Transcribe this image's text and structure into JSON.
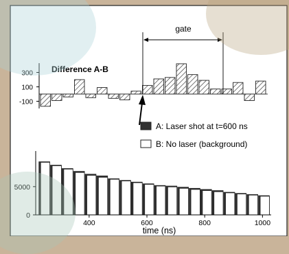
{
  "chart_data": [
    {
      "type": "bar",
      "title": "Difference A-B",
      "y_ticks": [
        "300",
        "100",
        "-100"
      ],
      "ylim": [
        -220,
        440
      ],
      "values": [
        -170,
        -90,
        -40,
        200,
        -50,
        90,
        -60,
        -80,
        40,
        120,
        210,
        230,
        420,
        270,
        190,
        70,
        70,
        160,
        -90,
        180
      ],
      "bar_style": "hatched",
      "annotation": {
        "label": "gate"
      }
    },
    {
      "type": "bar",
      "xlabel": "time (ns)",
      "x_ticks": [
        "400",
        "600",
        "800",
        "1000"
      ],
      "x_tick_values": [
        400,
        600,
        800,
        1000
      ],
      "y_ticks": [
        "5000",
        "0"
      ],
      "y_tick_values": [
        5000,
        0
      ],
      "xlim": [
        215,
        1030
      ],
      "ylim": [
        0,
        11300
      ],
      "bin_start": 225,
      "bin_width": 40,
      "series": [
        {
          "name": "A: Laser shot at t=600 ns",
          "color": "#333333",
          "values": [
            9400,
            8800,
            8200,
            7700,
            7200,
            6900,
            6400,
            6100,
            5800,
            5500,
            5200,
            5100,
            4900,
            4700,
            4500,
            4300,
            4000,
            3800,
            3600,
            3400
          ]
        },
        {
          "name": "B: No laser (background)",
          "color": "#ffffff",
          "values": [
            9300,
            8700,
            8100,
            7500,
            7000,
            6650,
            6300,
            6000,
            5700,
            5400,
            5100,
            4950,
            4700,
            4500,
            4300,
            4100,
            3900,
            3700,
            3500,
            3300
          ]
        }
      ]
    }
  ]
}
